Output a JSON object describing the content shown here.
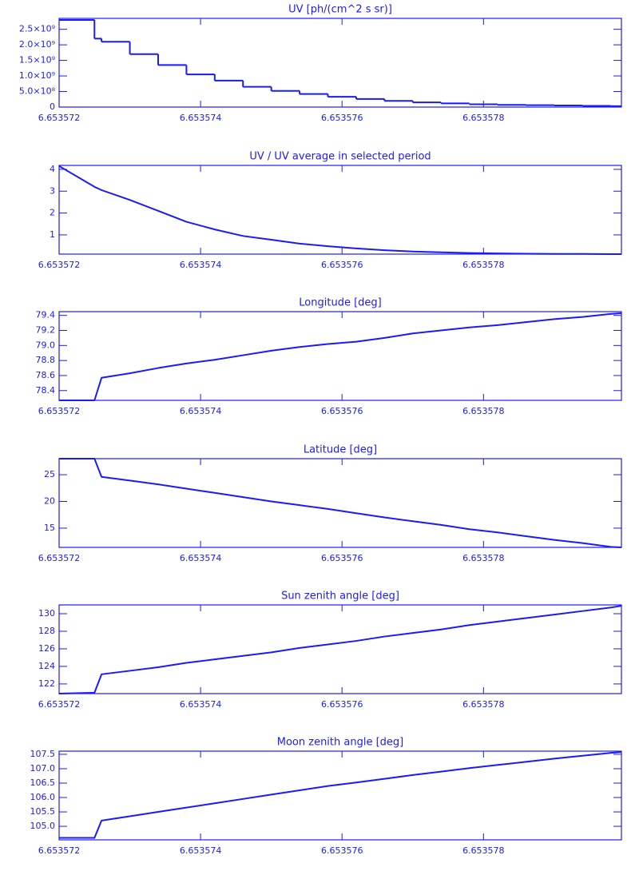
{
  "chart_data": [
    {
      "type": "line",
      "drawstyle": "steps-post",
      "title": "UV [ph/(cm^2 s sr)]",
      "color": "#1a1aff",
      "x": [
        6.653572,
        6.6535725,
        6.6535726,
        6.653573,
        6.6535734,
        6.6535738,
        6.6535742,
        6.6535746,
        6.653575,
        6.6535754,
        6.6535758,
        6.6535762,
        6.6535766,
        6.653577,
        6.6535774,
        6.6535778,
        6.6535782,
        6.6535786,
        6.653579,
        6.6535794,
        6.6535798,
        6.65357995
      ],
      "values": [
        2800000000,
        2200000000,
        2100000000,
        1700000000,
        1350000000,
        1050000000,
        850000000,
        650000000,
        520000000,
        420000000,
        330000000,
        260000000,
        200000000,
        150000000,
        120000000,
        90000000,
        70000000,
        60000000,
        50000000,
        40000000,
        30000000,
        30000000
      ],
      "xlim": [
        6.653572,
        6.65357995
      ],
      "xticks": [
        6.653572,
        6.653574,
        6.653576,
        6.653578
      ],
      "ylim": [
        0,
        2850000000
      ],
      "yticks": [
        0,
        {
          "value": 500000000,
          "label": "5.0×10⁸"
        },
        {
          "value": 1000000000,
          "label": "1.0×10⁹"
        },
        {
          "value": 1500000000,
          "label": "1.5×10⁹"
        },
        {
          "value": 2000000000,
          "label": "2.0×10⁹"
        },
        {
          "value": 2500000000,
          "label": "2.5×10⁹"
        }
      ]
    },
    {
      "type": "line",
      "title": "UV / UV average in selected period",
      "color": "#1a1aff",
      "x": [
        6.653572,
        6.6535725,
        6.6535726,
        6.653573,
        6.6535734,
        6.6535738,
        6.6535742,
        6.6535746,
        6.653575,
        6.6535754,
        6.6535758,
        6.6535762,
        6.6535766,
        6.653577,
        6.6535774,
        6.6535778,
        6.6535782,
        6.6535786,
        6.653579,
        6.6535794,
        6.6535798,
        6.65357995
      ],
      "values": [
        4.15,
        3.2,
        3.05,
        2.6,
        2.1,
        1.6,
        1.25,
        0.95,
        0.78,
        0.6,
        0.48,
        0.38,
        0.3,
        0.24,
        0.2,
        0.17,
        0.15,
        0.14,
        0.13,
        0.13,
        0.12,
        0.12
      ],
      "xlim": [
        6.653572,
        6.65357995
      ],
      "xticks": [
        6.653572,
        6.653574,
        6.653576,
        6.653578
      ],
      "ylim": [
        0.12,
        4.18
      ],
      "yticks": [
        1,
        2,
        3,
        4
      ]
    },
    {
      "type": "line",
      "title": "Longitude [deg]",
      "color": "#1a1aff",
      "x": [
        6.653572,
        6.6535725,
        6.6535726,
        6.653573,
        6.6535734,
        6.6535738,
        6.6535742,
        6.6535746,
        6.653575,
        6.6535754,
        6.6535758,
        6.6535762,
        6.6535766,
        6.653577,
        6.6535774,
        6.6535778,
        6.6535782,
        6.6535786,
        6.653579,
        6.6535794,
        6.6535798,
        6.65357995
      ],
      "values": [
        78.27,
        78.27,
        78.57,
        78.63,
        78.7,
        78.76,
        78.81,
        78.87,
        78.93,
        78.98,
        79.02,
        79.05,
        79.1,
        79.16,
        79.2,
        79.24,
        79.27,
        79.31,
        79.35,
        79.38,
        79.42,
        79.43
      ],
      "xlim": [
        6.653572,
        6.65357995
      ],
      "xticks": [
        6.653572,
        6.653574,
        6.653576,
        6.653578
      ],
      "ylim": [
        78.27,
        79.45
      ],
      "yticks": [
        78.4,
        78.6,
        78.8,
        {
          "value": 79,
          "label": "79.0"
        },
        79.2,
        79.4
      ]
    },
    {
      "type": "line",
      "title": "Latitude [deg]",
      "color": "#1a1aff",
      "x": [
        6.653572,
        6.6535725,
        6.6535726,
        6.653573,
        6.6535734,
        6.6535738,
        6.6535742,
        6.6535746,
        6.653575,
        6.6535754,
        6.6535758,
        6.6535762,
        6.6535766,
        6.653577,
        6.6535774,
        6.6535778,
        6.6535782,
        6.6535786,
        6.653579,
        6.6535794,
        6.6535798,
        6.65357995
      ],
      "values": [
        28.0,
        28.0,
        24.6,
        23.9,
        23.2,
        22.4,
        21.6,
        20.8,
        20.0,
        19.3,
        18.6,
        17.8,
        17.0,
        16.3,
        15.6,
        14.8,
        14.2,
        13.5,
        12.8,
        12.2,
        11.5,
        11.4
      ],
      "xlim": [
        6.653572,
        6.65357995
      ],
      "xticks": [
        6.653572,
        6.653574,
        6.653576,
        6.653578
      ],
      "ylim": [
        11.4,
        28.0
      ],
      "yticks": [
        15,
        20,
        25
      ]
    },
    {
      "type": "line",
      "title": "Sun zenith angle [deg]",
      "color": "#1a1aff",
      "x": [
        6.653572,
        6.6535725,
        6.6535726,
        6.653573,
        6.6535734,
        6.6535738,
        6.6535742,
        6.6535746,
        6.653575,
        6.6535754,
        6.6535758,
        6.6535762,
        6.6535766,
        6.653577,
        6.6535774,
        6.6535778,
        6.6535782,
        6.6535786,
        6.653579,
        6.6535794,
        6.6535798,
        6.65357995
      ],
      "values": [
        120.9,
        121.0,
        123.1,
        123.5,
        123.9,
        124.4,
        124.8,
        125.2,
        125.6,
        126.1,
        126.5,
        126.9,
        127.4,
        127.8,
        128.2,
        128.7,
        129.1,
        129.5,
        129.9,
        130.3,
        130.7,
        130.9
      ],
      "xlim": [
        6.653572,
        6.65357995
      ],
      "xticks": [
        6.653572,
        6.653574,
        6.653576,
        6.653578
      ],
      "ylim": [
        120.9,
        131.0
      ],
      "yticks": [
        122,
        124,
        126,
        128,
        130
      ]
    },
    {
      "type": "line",
      "title": "Moon zenith angle [deg]",
      "color": "#1a1aff",
      "x": [
        6.653572,
        6.6535725,
        6.6535726,
        6.653573,
        6.6535734,
        6.6535738,
        6.6535742,
        6.6535746,
        6.653575,
        6.6535754,
        6.6535758,
        6.6535762,
        6.6535766,
        6.653577,
        6.6535774,
        6.6535778,
        6.6535782,
        6.6535786,
        6.653579,
        6.6535794,
        6.6535798,
        6.65357995
      ],
      "values": [
        104.6,
        104.6,
        105.2,
        105.35,
        105.5,
        105.65,
        105.8,
        105.95,
        106.1,
        106.25,
        106.4,
        106.52,
        106.65,
        106.78,
        106.9,
        107.02,
        107.13,
        107.24,
        107.35,
        107.45,
        107.55,
        107.58
      ],
      "xlim": [
        6.653572,
        6.65357995
      ],
      "xticks": [
        6.653572,
        6.653574,
        6.653576,
        6.653578
      ],
      "ylim": [
        104.53,
        107.61
      ],
      "yticks": [
        {
          "value": 105,
          "label": "105.0"
        },
        105.5,
        {
          "value": 106,
          "label": "106.0"
        },
        106.5,
        {
          "value": 107,
          "label": "107.0"
        },
        107.5
      ]
    }
  ]
}
